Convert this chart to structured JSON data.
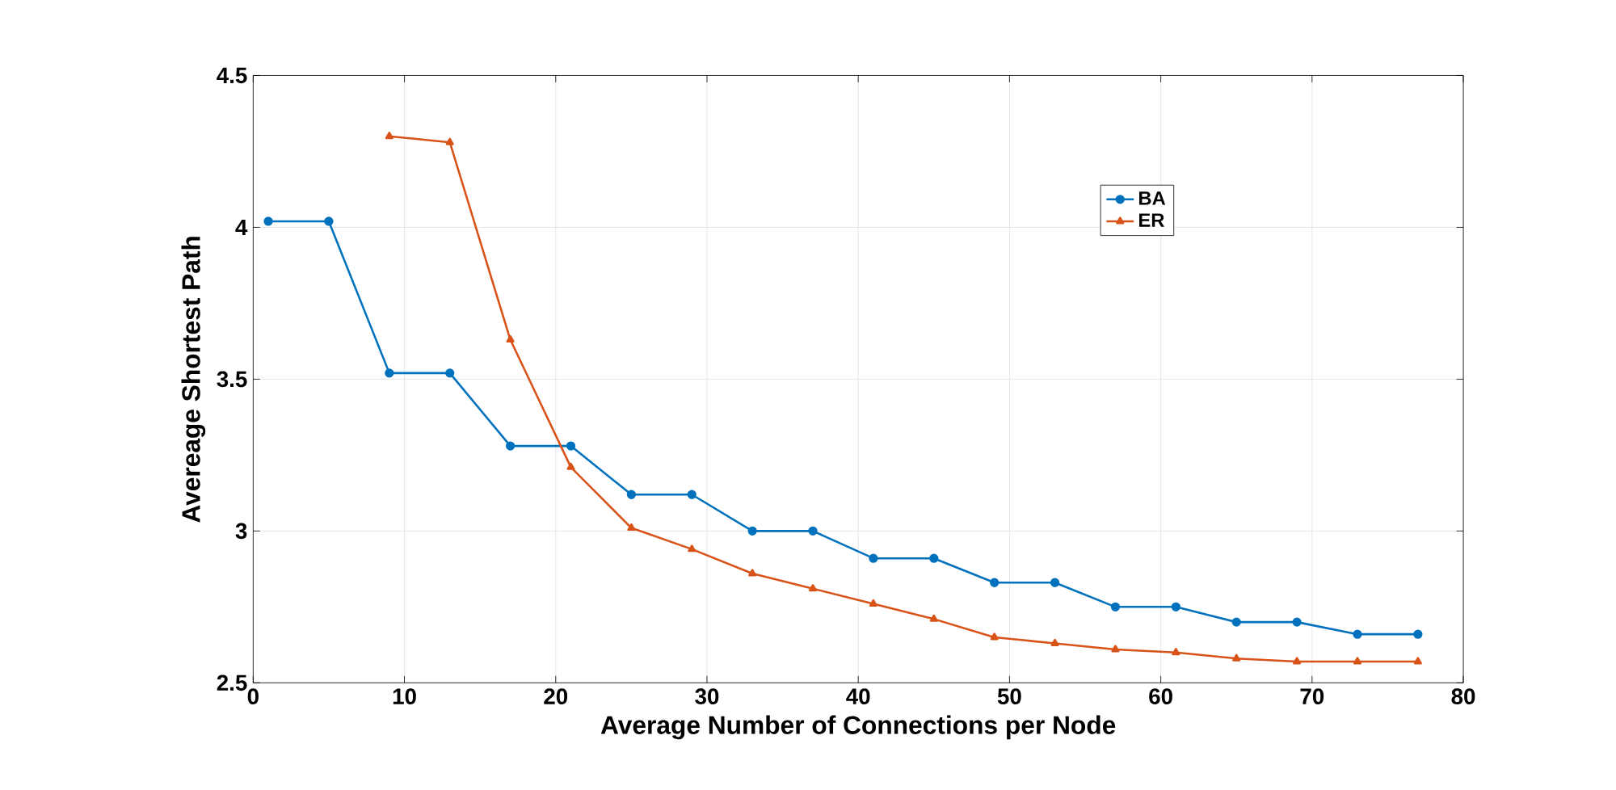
{
  "chart_data": {
    "type": "line",
    "xlabel": "Average Number of Connections per Node",
    "ylabel": "Avereage Shortest Path",
    "xlim": [
      0,
      80
    ],
    "xticks": [
      0,
      10,
      20,
      30,
      40,
      50,
      60,
      70,
      80
    ],
    "ylim": [
      2.5,
      4.5
    ],
    "yticks": [
      2.5,
      3,
      3.5,
      4,
      4.5
    ],
    "grid": true,
    "legend": "top right",
    "line_style": "solid",
    "series": [
      {
        "name": "BA",
        "color": "#0072bd",
        "marker": "circle",
        "x": [
          1,
          5,
          9,
          13,
          17,
          21,
          25,
          29,
          33,
          37,
          41,
          45,
          49,
          53,
          57,
          61,
          65,
          69,
          73,
          77
        ],
        "values": [
          4.02,
          4.02,
          3.52,
          3.52,
          3.28,
          3.28,
          3.12,
          3.12,
          3.0,
          3.0,
          2.91,
          2.91,
          2.83,
          2.83,
          2.75,
          2.75,
          2.7,
          2.7,
          2.66,
          2.66
        ]
      },
      {
        "name": "ER",
        "color": "#d95319",
        "marker": "triangle",
        "x": [
          9,
          13,
          17,
          21,
          25,
          29,
          33,
          37,
          41,
          45,
          49,
          53,
          57,
          61,
          65,
          69,
          73,
          77
        ],
        "values": [
          4.3,
          4.28,
          3.63,
          3.21,
          3.01,
          2.94,
          2.86,
          2.81,
          2.76,
          2.71,
          2.65,
          2.63,
          2.61,
          2.6,
          2.58,
          2.57,
          2.57,
          2.57
        ]
      }
    ]
  }
}
